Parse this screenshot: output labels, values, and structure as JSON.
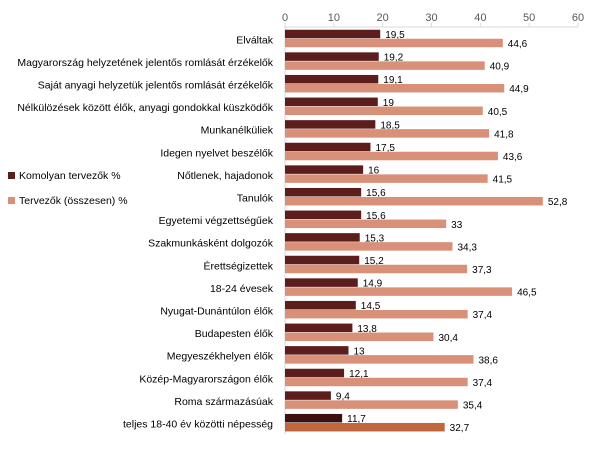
{
  "chart_data": {
    "type": "bar",
    "orientation": "horizontal",
    "categories": [
      "Elváltak",
      "Magyarország helyzetének jelentős romlását érzékelők",
      "Saját anyagi helyzetük jelentős romlását érzékelők",
      "Nélkülözések között élők, anyagi gondokkal küszködők",
      "Munkanélküliek",
      "Idegen nyelvet beszélők",
      "Nőtlenek, hajadonok",
      "Tanulók",
      "Egyetemi végzettségűek",
      "Szakmunkásként dolgozók",
      "Érettségizettek",
      "18-24 évesek",
      "Nyugat-Dunántúlon élők",
      "Budapesten élők",
      "Megyeszékhelyen élők",
      "Közép-Magyarországon élők",
      "Roma származásúak",
      "teljes 18-40 év közötti népesség"
    ],
    "series": [
      {
        "name": "Komolyan tervezők %",
        "color": "#5c1d1d",
        "values": [
          19.5,
          19.2,
          19.1,
          19,
          18.5,
          17.5,
          16,
          15.6,
          15.6,
          15.3,
          15.2,
          14.9,
          14.5,
          13.8,
          13,
          12.1,
          9.4,
          11.7
        ],
        "labels": [
          "19,5",
          "19,2",
          "19,1",
          "19",
          "18,5",
          "17,5",
          "16",
          "15,6",
          "15,6",
          "15,3",
          "15,2",
          "14,9",
          "14,5",
          "13,8",
          "13",
          "12,1",
          "9,4",
          "11,7"
        ]
      },
      {
        "name": "Tervezők (összesen) %",
        "color": "#d99079",
        "values": [
          44.6,
          40.9,
          44.9,
          40.5,
          41.8,
          43.6,
          41.5,
          52.8,
          33,
          34.3,
          37.3,
          46.5,
          37.4,
          30.4,
          38.6,
          37.4,
          35.4,
          32.7
        ],
        "labels": [
          "44,6",
          "40,9",
          "44,9",
          "40,5",
          "41,8",
          "43,6",
          "41,5",
          "52,8",
          "33",
          "34,3",
          "37,3",
          "46,5",
          "37,4",
          "30,4",
          "38,6",
          "37,4",
          "35,4",
          "32,7"
        ]
      }
    ],
    "highlight_last": {
      "series_colors": [
        "#3b1010",
        "#c0673e"
      ]
    },
    "xlim": [
      0,
      60
    ],
    "xticks": [
      0,
      10,
      20,
      30,
      40,
      50,
      60
    ],
    "xtick_labels": [
      "0",
      "10",
      "20",
      "30",
      "40",
      "50",
      "60"
    ],
    "axis_position": "top",
    "grid": false,
    "legend": "left",
    "title": "",
    "xlabel": "",
    "ylabel": ""
  }
}
